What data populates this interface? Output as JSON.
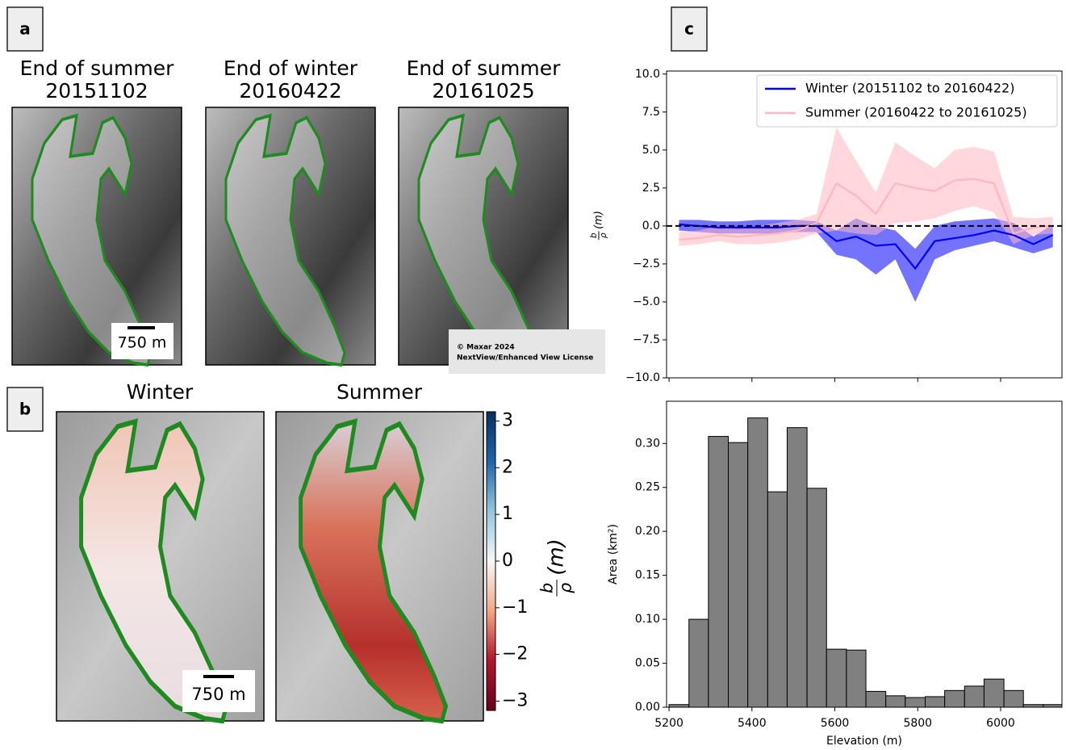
{
  "panel_labels": [
    "a",
    "b",
    "c"
  ],
  "panel_a": {
    "images": [
      {
        "title": [
          "End of summer",
          "20151102"
        ]
      },
      {
        "title": [
          "End of winter",
          "20160422"
        ]
      },
      {
        "title": [
          "End of summer",
          "20161025"
        ]
      }
    ],
    "scale_bar": "750 m",
    "copyright": [
      "© Maxar 2024",
      "NextView/Enhanced View License"
    ]
  },
  "panel_b": {
    "titles": [
      "Winter",
      "Summer"
    ],
    "scale_bar": "750 m",
    "colorbar": {
      "lim": [
        -3.2,
        3.2
      ],
      "ticks": [
        3,
        2,
        1,
        0,
        {
          "value": -1,
          "label": "−1"
        },
        {
          "value": -2,
          "label": "−2"
        },
        {
          "value": -3,
          "label": "−3"
        }
      ],
      "label": {
        "numerator": "b",
        "denominator": "ρ",
        "unit": "(m)"
      }
    }
  },
  "chart_data": [
    {
      "type": "line",
      "x": [
        5224,
        5271,
        5319,
        5366,
        5414,
        5461,
        5509,
        5556,
        5604,
        5651,
        5699,
        5746,
        5794,
        5841,
        5889,
        5936,
        5984,
        6031,
        6079,
        6126
      ],
      "xlim": [
        5194,
        6148
      ],
      "xticks": [
        5200,
        5400,
        5600,
        5800,
        6000
      ],
      "ylim": [
        -10,
        10.2
      ],
      "yticks": [
        {
          "value": 10,
          "label": "10.0"
        },
        {
          "value": 7.5,
          "label": "7.5"
        },
        {
          "value": 5,
          "label": "5.0"
        },
        {
          "value": 2.5,
          "label": "2.5"
        },
        {
          "value": 0,
          "label": "0.0"
        },
        {
          "value": -2.5,
          "label": "−2.5"
        },
        {
          "value": -5,
          "label": "−5.0"
        },
        {
          "value": -7.5,
          "label": "−7.5"
        },
        {
          "value": -10,
          "label": "−10.0"
        }
      ],
      "ylabel": {
        "numerator": "b",
        "denominator": "ρ",
        "unit": "(m)"
      },
      "reference_line": 0,
      "legend": "upper right",
      "series": [
        {
          "name": "Winter (20151102 to 20160422)",
          "color": "#0000ff",
          "values": [
            0.1,
            0.0,
            -0.1,
            -0.1,
            -0.1,
            -0.1,
            0.0,
            0.0,
            -1.0,
            -0.7,
            -1.3,
            -1.2,
            -2.8,
            -1.0,
            -0.8,
            -0.6,
            -0.3,
            -0.6,
            -1.2,
            -0.6
          ],
          "lower": [
            -0.3,
            -0.4,
            -0.5,
            -0.5,
            -0.5,
            -0.5,
            -0.4,
            -0.4,
            -1.9,
            -2.2,
            -3.2,
            -2.2,
            -5.0,
            -2.2,
            -1.6,
            -1.3,
            -1.0,
            -1.4,
            -1.8,
            -1.4
          ],
          "upper": [
            0.4,
            0.4,
            0.3,
            0.3,
            0.4,
            0.4,
            0.4,
            0.3,
            -0.3,
            0.5,
            0.0,
            -0.3,
            -1.5,
            0.0,
            0.3,
            0.4,
            0.5,
            0.2,
            -0.7,
            0.1
          ]
        },
        {
          "name": "Summer (20160422 to 20161025)",
          "color": "#ffb6c1",
          "values": [
            -0.9,
            -0.8,
            -0.6,
            -0.7,
            -0.6,
            -0.5,
            -0.3,
            0.2,
            2.8,
            2.0,
            0.8,
            2.8,
            2.5,
            2.3,
            3.0,
            3.1,
            2.8,
            -0.5,
            -0.1,
            0.0
          ],
          "lower": [
            -1.3,
            -1.2,
            -1.0,
            -1.2,
            -1.2,
            -1.1,
            -0.9,
            -0.5,
            -0.3,
            -0.5,
            -0.6,
            0.2,
            0.3,
            0.5,
            1.0,
            1.3,
            0.9,
            -1.2,
            -0.6,
            -0.5
          ],
          "upper": [
            -0.4,
            -0.3,
            0.0,
            -0.2,
            0.0,
            0.2,
            0.4,
            0.8,
            6.5,
            4.3,
            2.2,
            5.5,
            4.6,
            3.8,
            5.0,
            5.2,
            4.9,
            0.6,
            0.5,
            0.6
          ]
        }
      ]
    },
    {
      "type": "histogram",
      "bins": [
        5200,
        5248,
        5295,
        5343,
        5390,
        5438,
        5485,
        5533,
        5580,
        5628,
        5675,
        5723,
        5770,
        5818,
        5865,
        5913,
        5960,
        6008,
        6055,
        6103,
        6150
      ],
      "values": [
        0.003,
        0.1,
        0.308,
        0.301,
        0.329,
        0.245,
        0.318,
        0.249,
        0.066,
        0.065,
        0.018,
        0.013,
        0.011,
        0.012,
        0.019,
        0.024,
        0.032,
        0.019,
        0.003,
        0.003
      ],
      "color": "#808080",
      "xlim": [
        5194,
        6148
      ],
      "xticks": [
        5200,
        5400,
        5600,
        5800,
        6000
      ],
      "ylim": [
        0,
        0.348
      ],
      "yticks": [
        {
          "value": 0,
          "label": "0.00"
        },
        {
          "value": 0.05,
          "label": "0.05"
        },
        {
          "value": 0.1,
          "label": "0.10"
        },
        {
          "value": 0.15,
          "label": "0.15"
        },
        {
          "value": 0.2,
          "label": "0.20"
        },
        {
          "value": 0.25,
          "label": "0.25"
        },
        {
          "value": 0.3,
          "label": "0.30"
        }
      ],
      "xlabel": "Elevation (m)",
      "ylabel": "Area (km²)"
    }
  ]
}
